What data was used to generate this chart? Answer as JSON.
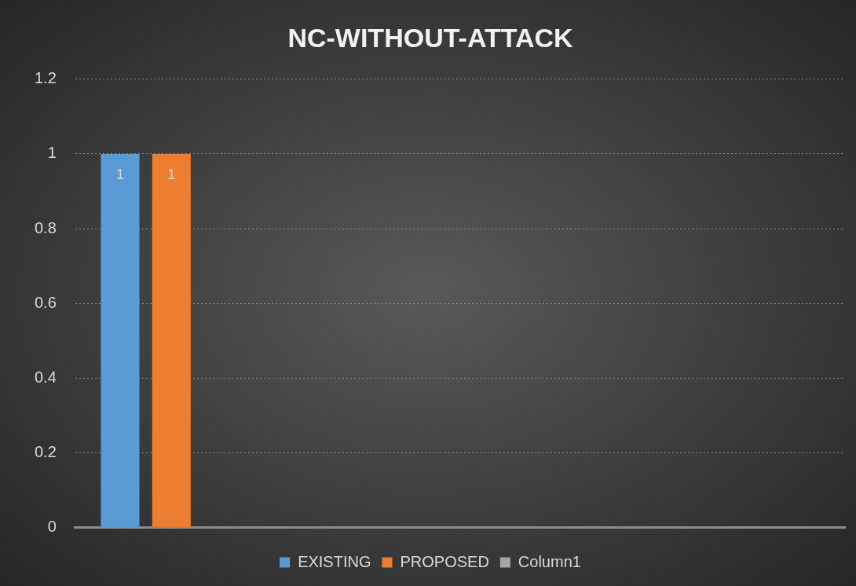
{
  "chart_data": {
    "type": "bar",
    "title": "NC-WITHOUT-ATTACK",
    "categories": [
      null,
      null,
      null,
      null
    ],
    "series": [
      {
        "name": "EXISTING",
        "color": "#5b9bd5",
        "values": [
          1,
          null,
          null,
          null
        ]
      },
      {
        "name": "PROPOSED",
        "color": "#ed7d31",
        "values": [
          1,
          null,
          null,
          null
        ]
      },
      {
        "name": "Column1",
        "color": "#a5a5a5",
        "values": [
          null,
          null,
          null,
          null
        ]
      }
    ],
    "ylim": [
      0,
      1.2
    ],
    "yticks": [
      0,
      0.2,
      0.4,
      0.6,
      0.8,
      1,
      1.2
    ],
    "grid": "y",
    "legend": "bottom",
    "data_labels": true
  }
}
